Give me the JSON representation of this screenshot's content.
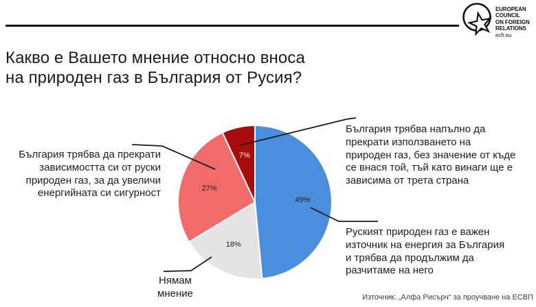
{
  "header": {
    "logo": {
      "lines": [
        "EUROPEAN",
        "COUNCIL",
        "ON FOREIGN",
        "RELATIONS"
      ],
      "domain": "ecfr.eu"
    }
  },
  "title": {
    "lines": [
      "Какво е Вашето мнение относно вноса",
      "на природен газ в България от Русия?"
    ]
  },
  "chart_data": {
    "type": "pie",
    "title": "Какво е Вашето мнение относно вноса на природен газ в България от Русия?",
    "start_angle_deg": 0,
    "direction": "clockwise",
    "value_suffix": "%",
    "legend_position": "callouts",
    "slices": [
      {
        "label": "Руският природен газ е важен източник на енергия за България и трябва да продължим да разчитаме на него",
        "value": 49,
        "color": "#4a8ee0",
        "label_color": "#222222"
      },
      {
        "label": "Нямам мнение",
        "value": 18,
        "color": "#e4e4e4",
        "label_color": "#222222"
      },
      {
        "label": "България трябва да прекрати зависимостта си от руски природен газ, за да увеличи енергийната си сигурност",
        "value": 27,
        "color": "#f16b6b",
        "label_color": "#222222"
      },
      {
        "label": "България трябва напълно да прекрати използването на природен газ, без значение от къде се внася той, тъй като винаги ще е зависима от трета страна",
        "value": 7,
        "color": "#a90c0d",
        "label_color": "#ffffff"
      }
    ]
  },
  "callouts": {
    "left": {
      "lines": [
        "България трябва да прекрати",
        "зависимостта си от руски",
        "природен газ, за да увеличи",
        "енергийната си сигурност"
      ]
    },
    "top_right": {
      "lines": [
        "България трябва напълно да",
        "прекрати използването на",
        "природен газ, без значение от къде",
        "се внася той, тъй като винаги ще е",
        "зависима от трета страна"
      ]
    },
    "bottom_right": {
      "lines": [
        "Руският природен газ е важен",
        "източник на енергия за България",
        "и трябва да продължим да",
        "разчитаме на него"
      ]
    },
    "no_opinion": {
      "lines": [
        "Нямам",
        "мнение"
      ]
    }
  },
  "source": {
    "text": "Източник: „Алфа Рисърч“ за проучване на ЕСВП"
  }
}
